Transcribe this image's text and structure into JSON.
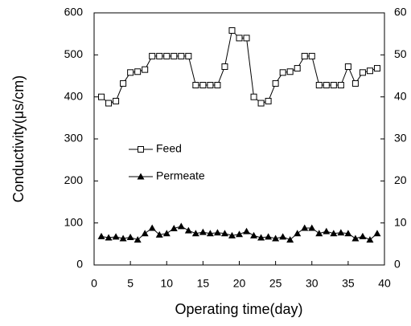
{
  "chart_data": {
    "type": "line",
    "xlabel": "Operating time(day)",
    "ylabel": "Conductivity(μs/cm)",
    "x": [
      1,
      2,
      3,
      4,
      5,
      6,
      7,
      8,
      9,
      10,
      11,
      12,
      13,
      14,
      15,
      16,
      17,
      18,
      19,
      20,
      21,
      22,
      23,
      24,
      25,
      26,
      27,
      28,
      29,
      30,
      31,
      32,
      33,
      34,
      35,
      36,
      37,
      38,
      39
    ],
    "series": [
      {
        "name": "Feed",
        "color": "#000000",
        "marker": "square-open",
        "values": [
          400,
          385,
          390,
          432,
          458,
          460,
          465,
          497,
          497,
          497,
          497,
          497,
          497,
          428,
          428,
          428,
          428,
          472,
          558,
          540,
          540,
          400,
          385,
          390,
          432,
          458,
          460,
          468,
          497,
          497,
          428,
          428,
          428,
          428,
          472,
          432,
          458,
          462,
          468
        ]
      },
      {
        "name": "Permeate",
        "color": "#000000",
        "marker": "triangle-filled",
        "axis": "y2",
        "values": [
          6.8,
          6.5,
          6.7,
          6.3,
          6.6,
          6.0,
          7.5,
          8.8,
          7.2,
          7.5,
          8.7,
          9.2,
          8.2,
          7.5,
          7.8,
          7.5,
          7.7,
          7.5,
          7.0,
          7.3,
          8.0,
          7.0,
          6.5,
          6.7,
          6.3,
          6.7,
          6.0,
          7.5,
          8.8,
          8.8,
          7.5,
          8.0,
          7.5,
          7.7,
          7.5,
          6.3,
          6.8,
          6.0,
          7.5
        ]
      }
    ],
    "xlim": [
      0,
      40
    ],
    "xticks": [
      0,
      5,
      10,
      15,
      20,
      25,
      30,
      35,
      40
    ],
    "ylim": [
      0,
      600
    ],
    "yticks": [
      0,
      100,
      200,
      300,
      400,
      500,
      600
    ],
    "y2lim": [
      0,
      60
    ],
    "y2ticks": [
      0,
      10,
      20,
      30,
      40,
      50,
      60
    ],
    "grid": false,
    "legend": "center-left"
  }
}
